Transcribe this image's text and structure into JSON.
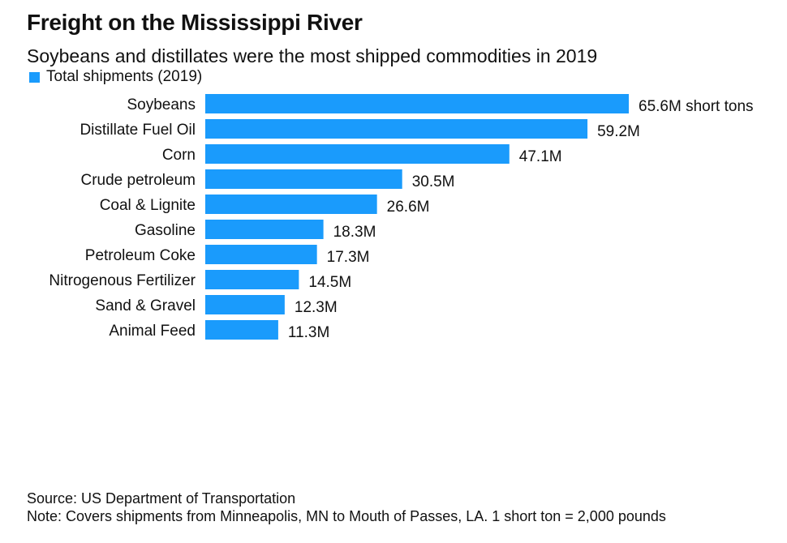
{
  "header": {
    "title": "Freight on the Mississippi River",
    "subtitle": "Soybeans and distillates were the most shipped commodities in 2019"
  },
  "legend": {
    "label": "Total shipments (2019)",
    "color": "#1a9bfc"
  },
  "chart_data": {
    "type": "bar",
    "orientation": "horizontal",
    "title": "Freight on the Mississippi River",
    "subtitle": "Soybeans and distillates were the most shipped commodities in 2019",
    "categories": [
      "Soybeans",
      "Distillate Fuel Oil",
      "Corn",
      "Crude petroleum",
      "Coal & Lignite",
      "Gasoline",
      "Petroleum Coke",
      "Nitrogenous Fertilizer",
      "Sand & Gravel",
      "Animal Feed"
    ],
    "series": [
      {
        "name": "Total shipments (2019)",
        "values": [
          65.6,
          59.2,
          47.1,
          30.5,
          26.6,
          18.3,
          17.3,
          14.5,
          12.3,
          11.3
        ],
        "data_labels": [
          "65.6M short tons",
          "59.2M",
          "47.1M",
          "30.5M",
          "26.6M",
          "18.3M",
          "17.3M",
          "14.5M",
          "12.3M",
          "11.3M"
        ]
      }
    ],
    "xlim": [
      0,
      65.6
    ],
    "unit": "M short tons",
    "grid": false,
    "legend_position": "top-left",
    "bar_color": "#1a9bfc"
  },
  "footer": {
    "source": "Source: US Department of Transportation",
    "note": "Note: Covers shipments from Minneapolis, MN to Mouth of Passes, LA. 1 short ton = 2,000 pounds"
  }
}
